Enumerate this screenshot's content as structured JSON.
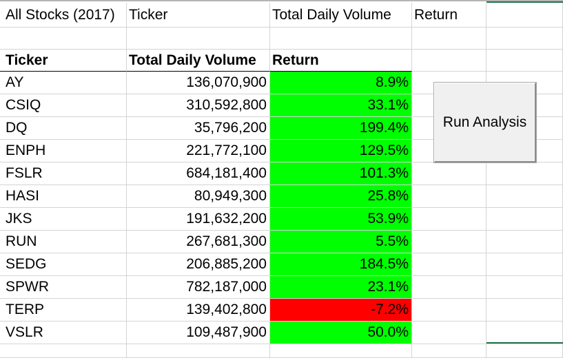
{
  "colors": {
    "positive": "#00ff00",
    "negative": "#ff0000"
  },
  "title_row": [
    "All Stocks (2017)",
    "Ticker",
    "Total Daily Volume",
    "Return",
    ""
  ],
  "headers": {
    "ticker": "Ticker",
    "volume": "Total Daily Volume",
    "return": "Return"
  },
  "rows": [
    {
      "ticker": "AY",
      "volume": "136,070,900",
      "return": "8.9%",
      "status": "positive"
    },
    {
      "ticker": "CSIQ",
      "volume": "310,592,800",
      "return": "33.1%",
      "status": "positive"
    },
    {
      "ticker": "DQ",
      "volume": "35,796,200",
      "return": "199.4%",
      "status": "positive"
    },
    {
      "ticker": "ENPH",
      "volume": "221,772,100",
      "return": "129.5%",
      "status": "positive"
    },
    {
      "ticker": "FSLR",
      "volume": "684,181,400",
      "return": "101.3%",
      "status": "positive"
    },
    {
      "ticker": "HASI",
      "volume": "80,949,300",
      "return": "25.8%",
      "status": "positive"
    },
    {
      "ticker": "JKS",
      "volume": "191,632,200",
      "return": "53.9%",
      "status": "positive"
    },
    {
      "ticker": "RUN",
      "volume": "267,681,300",
      "return": "5.5%",
      "status": "positive"
    },
    {
      "ticker": "SEDG",
      "volume": "206,885,200",
      "return": "184.5%",
      "status": "positive"
    },
    {
      "ticker": "SPWR",
      "volume": "782,187,000",
      "return": "23.1%",
      "status": "positive"
    },
    {
      "ticker": "TERP",
      "volume": "139,402,800",
      "return": "-7.2%",
      "status": "negative"
    },
    {
      "ticker": "VSLR",
      "volume": "109,487,900",
      "return": "50.0%",
      "status": "positive"
    }
  ],
  "button": {
    "label": "Run Analysis"
  }
}
